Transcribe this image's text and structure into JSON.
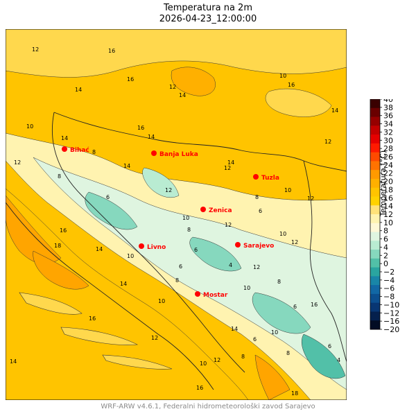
{
  "title": "Temperatura na 2m",
  "subtitle": "2026-04-23_12:00:00",
  "footer": "WRF-ARW v4.6.1, Federalni hidrometeorološki zavod Sarajevo",
  "colorbar": {
    "label": "Temperatura (°C)",
    "ticks": [
      40,
      38,
      36,
      34,
      32,
      30,
      28,
      26,
      24,
      22,
      20,
      18,
      16,
      14,
      12,
      10,
      8,
      6,
      4,
      2,
      0,
      -2,
      -4,
      -6,
      -8,
      -10,
      -12,
      -16,
      -20
    ],
    "colors": [
      "#3a0000",
      "#6a0000",
      "#960000",
      "#c40000",
      "#e60000",
      "#ff1a00",
      "#ff4a00",
      "#ff7300",
      "#ff9a00",
      "#ffb000",
      "#ffc400",
      "#ffd200",
      "#ffe27a",
      "#fff3b0",
      "#fff8d6",
      "#dff5e0",
      "#b9ecd2",
      "#86d8be",
      "#52c0a8",
      "#2aa5a0",
      "#1986a8",
      "#1268a5",
      "#0c4f8f",
      "#083673",
      "#05204d",
      "#020c24"
    ],
    "label_color": "#000000"
  },
  "cities": [
    {
      "name": "Bihać",
      "label": "Bihać"
    },
    {
      "name": "Banja Luka",
      "label": "Banja Luka"
    },
    {
      "name": "Tuzla",
      "label": "Tuzla"
    },
    {
      "name": "Zenica",
      "label": "Zenica"
    },
    {
      "name": "Sarajevo",
      "label": "Sarajevo"
    },
    {
      "name": "Livno",
      "label": "Livno"
    },
    {
      "name": "Mostar",
      "label": "Mostar"
    }
  ],
  "contour_labels": [
    "12",
    "16",
    "14",
    "16",
    "12",
    "14",
    "10",
    "16",
    "14",
    "12",
    "16",
    "14",
    "12",
    "14",
    "10",
    "8",
    "14",
    "12",
    "10",
    "12",
    "8",
    "6",
    "10",
    "12",
    "8",
    "6",
    "14",
    "12",
    "10",
    "8",
    "6",
    "12",
    "18",
    "16",
    "14",
    "10",
    "8",
    "6",
    "4",
    "12",
    "10",
    "8",
    "6",
    "16",
    "14",
    "10",
    "8",
    "6",
    "4",
    "16",
    "14",
    "12",
    "10",
    "8",
    "6",
    "16",
    "14",
    "18",
    "12",
    "10"
  ],
  "map_colors": {
    "warm_base": "#ffc400",
    "warm_light": "#ffd84d",
    "mid": "#fff3b0",
    "cool": "#dff5e0",
    "cold": "#86d8be",
    "coast": "#ffa500",
    "city_marker": "#ff0000",
    "city_label": "#ff0000"
  }
}
